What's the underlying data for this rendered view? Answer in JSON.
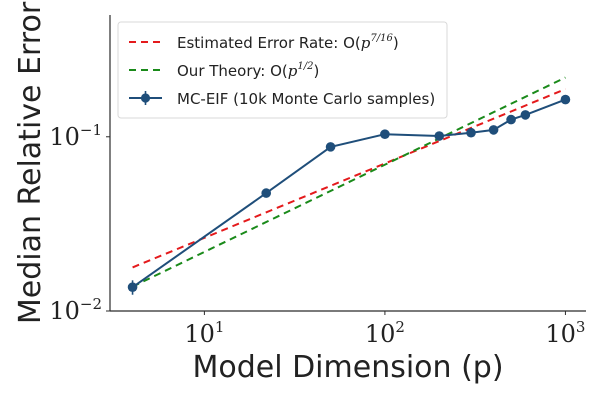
{
  "chart_data": {
    "type": "line",
    "xscale": "log",
    "yscale": "log",
    "xlabel": "Model Dimension (p)",
    "ylabel": "Median Relative Error",
    "xlim": [
      3,
      1300
    ],
    "ylim": [
      0.01,
      0.5
    ],
    "x_ticks": [
      {
        "value": 10,
        "base": "10",
        "exp": "1"
      },
      {
        "value": 100,
        "base": "10",
        "exp": "2"
      },
      {
        "value": 1000,
        "base": "10",
        "exp": "3"
      }
    ],
    "y_ticks": [
      {
        "value": 0.01,
        "base": "10",
        "exp": "−2"
      },
      {
        "value": 0.1,
        "base": "10",
        "exp": "−1"
      }
    ],
    "legend": {
      "position": "upper-left",
      "entries": [
        {
          "prefix": "Estimated Error Rate: O(",
          "math_base": "p",
          "math_exp": "7/16",
          "suffix": ")",
          "color": "#e41a1c",
          "style": "dashed"
        },
        {
          "prefix": "Our Theory: O(",
          "math_base": "p",
          "math_exp": "1/2",
          "suffix": ")",
          "color": "#1a8a1a",
          "style": "dashed"
        },
        {
          "prefix": "MC-EIF (10k Monte Carlo samples)",
          "math_base": "",
          "math_exp": "",
          "suffix": "",
          "color": "#1f4e7a",
          "style": "solid-marker"
        }
      ]
    },
    "series": [
      {
        "name": "Estimated Error Rate: O(p^{7/16})",
        "color": "#e41a1c",
        "style": "dashed",
        "x": [
          4,
          1000
        ],
        "values": [
          0.0178,
          0.1878
        ]
      },
      {
        "name": "Our Theory: O(p^{1/2})",
        "color": "#1a8a1a",
        "style": "dashed",
        "x": [
          4,
          1000
        ],
        "values": [
          0.0138,
          0.2189
        ]
      },
      {
        "name": "MC-EIF (10k Monte Carlo samples)",
        "color": "#1f4e7a",
        "style": "solid-marker",
        "x": [
          4,
          22,
          50,
          100,
          200,
          300,
          400,
          500,
          600,
          1000
        ],
        "values": [
          0.0137,
          0.0475,
          0.0875,
          0.1035,
          0.101,
          0.1055,
          0.1095,
          0.1255,
          0.1335,
          0.1635
        ],
        "error": [
          0.0013,
          0.0027,
          0.002,
          0.002,
          0.002,
          0.002,
          0.002,
          0.002,
          0.002,
          0.002
        ]
      }
    ]
  }
}
